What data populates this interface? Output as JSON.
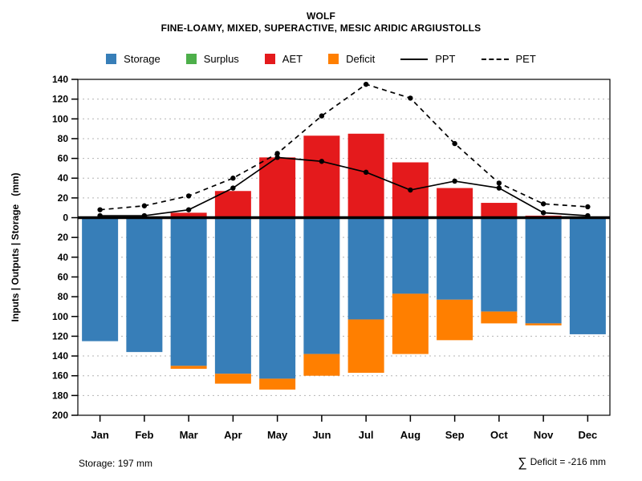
{
  "header": {
    "title": "WOLF",
    "subtitle": "FINE-LOAMY, MIXED, SUPERACTIVE, MESIC ARIDIC ARGIUSTOLLS"
  },
  "legend": [
    {
      "label": "Storage",
      "type": "square",
      "color": "#377EB8"
    },
    {
      "label": "Surplus",
      "type": "square",
      "color": "#4DAF4A"
    },
    {
      "label": "AET",
      "type": "square",
      "color": "#E41A1C"
    },
    {
      "label": "Deficit",
      "type": "square",
      "color": "#FF7F00"
    },
    {
      "label": "PPT",
      "type": "line-solid",
      "color": "#000000"
    },
    {
      "label": "PET",
      "type": "line-dashed",
      "color": "#000000"
    }
  ],
  "chart_data": {
    "type": "bar",
    "title": "WOLF",
    "subtitle": "FINE-LOAMY, MIXED, SUPERACTIVE, MESIC ARIDIC ARGIUSTOLLS",
    "categories": [
      "Jan",
      "Feb",
      "Mar",
      "Apr",
      "May",
      "Jun",
      "Jul",
      "Aug",
      "Sep",
      "Oct",
      "Nov",
      "Dec"
    ],
    "ylabel": "Inputs | Outputs | Storage   (mm)",
    "xlabel": "",
    "ylim": [
      -200,
      140
    ],
    "ytick_step": 20,
    "yticks_shown_as_absolute": true,
    "grid": true,
    "legend_position": "top",
    "series": [
      {
        "name": "AET",
        "kind": "bar-up",
        "color": "#E41A1C",
        "values": [
          0,
          0,
          5,
          27,
          61,
          83,
          85,
          56,
          30,
          15,
          2,
          0
        ]
      },
      {
        "name": "Surplus",
        "kind": "bar-up",
        "color": "#4DAF4A",
        "values": [
          0,
          0,
          0,
          0,
          0,
          0,
          0,
          0,
          0,
          0,
          0,
          0
        ]
      },
      {
        "name": "Storage",
        "kind": "bar-down",
        "color": "#377EB8",
        "values": [
          125,
          136,
          150,
          158,
          163,
          138,
          103,
          77,
          83,
          95,
          107,
          118
        ]
      },
      {
        "name": "Deficit",
        "kind": "bar-down-stacked",
        "color": "#FF7F00",
        "values": [
          0,
          0,
          3,
          10,
          11,
          22,
          54,
          61,
          41,
          12,
          2,
          0
        ]
      },
      {
        "name": "PPT",
        "kind": "line",
        "line_style": "solid",
        "color": "#000000",
        "values": [
          2,
          2,
          8,
          30,
          61,
          57,
          46,
          28,
          37,
          30,
          5,
          2
        ]
      },
      {
        "name": "PET",
        "kind": "line",
        "line_style": "dashed",
        "color": "#000000",
        "values": [
          8,
          12,
          22,
          40,
          65,
          103,
          135,
          121,
          75,
          35,
          14,
          11
        ]
      }
    ]
  },
  "footer": {
    "storage_note": "Storage: 197 mm",
    "deficit_sigma": "∑",
    "deficit_note": "Deficit = -216 mm"
  }
}
